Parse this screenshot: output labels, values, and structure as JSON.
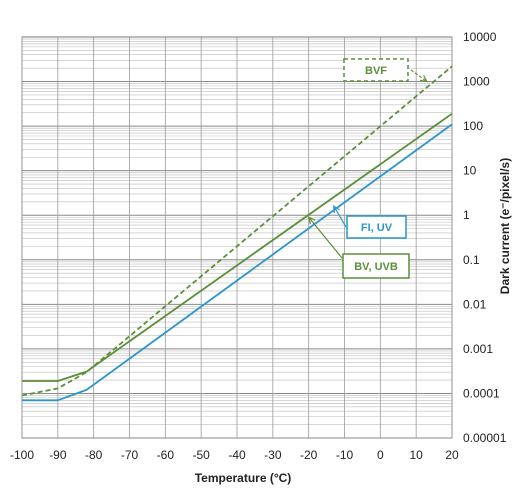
{
  "chart_data": {
    "type": "line",
    "xlabel": "Temperature (°C)",
    "ylabel": "Dark current (e⁻/pixel/s)",
    "xlim": [
      -100,
      20
    ],
    "ylim": [
      1e-05,
      10000
    ],
    "yscale": "log",
    "grid": true,
    "x_ticks": [
      "-100",
      "-90",
      "-80",
      "-70",
      "-60",
      "-50",
      "-40",
      "-30",
      "-20",
      "-10",
      "0",
      "10",
      "20"
    ],
    "y_ticks": [
      "10000",
      "1000",
      "100",
      "10",
      "1",
      "0.1",
      "0.01",
      "0.001",
      "0.0001",
      "0.00001"
    ],
    "series": [
      {
        "name": "BVF",
        "color": "#5b8f3a",
        "style": "dashed",
        "points": [
          [
            -100,
            9e-05
          ],
          [
            -90,
            0.00013
          ],
          [
            -82,
            0.0003
          ],
          [
            20,
            2200
          ]
        ]
      },
      {
        "name": "BV, UVB",
        "color": "#5b8f3a",
        "style": "solid",
        "points": [
          [
            -100,
            0.00019
          ],
          [
            -90,
            0.00019
          ],
          [
            -82,
            0.00031
          ],
          [
            20,
            190
          ]
        ]
      },
      {
        "name": "FI, UV",
        "color": "#2b96c9",
        "style": "solid",
        "points": [
          [
            -100,
            7e-05
          ],
          [
            -90,
            7e-05
          ],
          [
            -82,
            0.00012
          ],
          [
            20,
            110
          ]
        ]
      }
    ],
    "annotations": [
      {
        "text": "BVF",
        "series": 0,
        "box": "dashed",
        "arrow_to": [
          13,
          1000
        ]
      },
      {
        "text": "FI, UV",
        "series": 2,
        "box": "solid",
        "arrow_to": [
          -13,
          1.6
        ]
      },
      {
        "text": "BV, UVB",
        "series": 1,
        "box": "solid",
        "arrow_to": [
          -20,
          0.9
        ]
      }
    ]
  }
}
